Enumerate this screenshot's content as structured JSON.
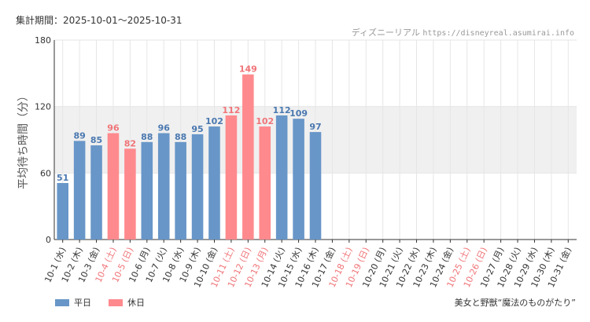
{
  "header": {
    "period_label": "集計期間：",
    "period_value": "2025-10-01～2025-10-31"
  },
  "source": {
    "site": "ディズニーリアル",
    "url": "https://disneyreal.asumirai.info"
  },
  "attraction": "美女と野獣“魔法のものがたり”",
  "colors": {
    "weekday": "#6896c8",
    "holiday": "#ff8a8e",
    "weekday_label": "#4a78b0",
    "holiday_label": "#f07478",
    "band": "#f0f0f0",
    "grid": "#e6e6e6"
  },
  "legend": [
    {
      "key": "weekday",
      "label": "平日"
    },
    {
      "key": "holiday",
      "label": "休日"
    }
  ],
  "chart_data": {
    "type": "bar",
    "ylabel": "平均待ち時間（分）",
    "ylim": [
      0,
      180
    ],
    "yticks": [
      0,
      60,
      120,
      180
    ],
    "shaded_band": [
      60,
      120
    ],
    "categories": [
      "10-1 (水)",
      "10-2 (木)",
      "10-3 (金)",
      "10-4 (土)",
      "10-5 (日)",
      "10-6 (月)",
      "10-7 (火)",
      "10-8 (水)",
      "10-9 (木)",
      "10-10 (金)",
      "10-11 (土)",
      "10-12 (日)",
      "10-13 (月)",
      "10-14 (火)",
      "10-15 (水)",
      "10-16 (木)",
      "10-17 (金)",
      "10-18 (土)",
      "10-19 (日)",
      "10-20 (月)",
      "10-21 (火)",
      "10-22 (水)",
      "10-23 (木)",
      "10-24 (金)",
      "10-25 (土)",
      "10-26 (日)",
      "10-27 (月)",
      "10-28 (火)",
      "10-29 (水)",
      "10-30 (木)",
      "10-31 (金)"
    ],
    "values": [
      51,
      89,
      85,
      96,
      82,
      88,
      96,
      88,
      95,
      102,
      112,
      149,
      102,
      112,
      109,
      97,
      null,
      null,
      null,
      null,
      null,
      null,
      null,
      null,
      null,
      null,
      null,
      null,
      null,
      null,
      null
    ],
    "day_type": [
      "weekday",
      "weekday",
      "weekday",
      "holiday",
      "holiday",
      "weekday",
      "weekday",
      "weekday",
      "weekday",
      "weekday",
      "holiday",
      "holiday",
      "holiday",
      "weekday",
      "weekday",
      "weekday",
      "weekday",
      "holiday",
      "holiday",
      "weekday",
      "weekday",
      "weekday",
      "weekday",
      "weekday",
      "holiday",
      "holiday",
      "weekday",
      "weekday",
      "weekday",
      "weekday",
      "weekday"
    ]
  }
}
